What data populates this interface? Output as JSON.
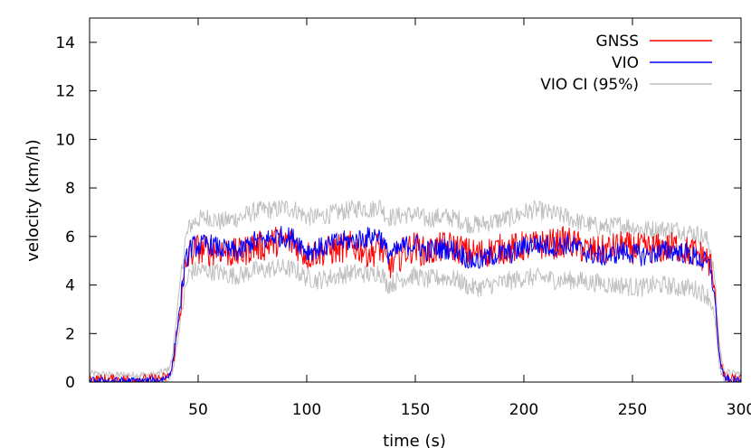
{
  "chart_data": {
    "type": "line",
    "title": "",
    "xlabel": "time (s)",
    "ylabel": "velocity (km/h)",
    "xlim": [
      0,
      300
    ],
    "ylim": [
      0,
      15
    ],
    "x_ticks": [
      50,
      100,
      150,
      200,
      250,
      300
    ],
    "y_ticks": [
      0,
      2,
      4,
      6,
      8,
      10,
      12,
      14
    ],
    "grid": false,
    "legend_position": "top-right",
    "series": [
      {
        "name": "GNSS",
        "color": "#ff0000",
        "x": [
          0,
          10,
          20,
          30,
          36,
          38,
          40,
          42,
          44,
          46,
          48,
          50,
          55,
          60,
          65,
          70,
          75,
          80,
          85,
          90,
          95,
          100,
          105,
          110,
          115,
          120,
          125,
          130,
          133,
          135,
          137,
          140,
          145,
          150,
          155,
          160,
          165,
          170,
          175,
          180,
          185,
          190,
          195,
          200,
          205,
          210,
          215,
          220,
          225,
          230,
          235,
          240,
          245,
          250,
          255,
          260,
          265,
          270,
          275,
          280,
          284,
          286,
          288,
          290,
          292,
          295,
          300
        ],
        "y": [
          0.1,
          0.1,
          0.1,
          0.1,
          0.2,
          0.5,
          1.8,
          3.2,
          4.6,
          5.3,
          5.4,
          5.5,
          5.4,
          5.5,
          5.3,
          5.3,
          5.6,
          5.6,
          5.8,
          5.8,
          5.7,
          5.2,
          5.4,
          5.4,
          5.5,
          5.6,
          5.5,
          5.3,
          5.6,
          5.4,
          4.8,
          4.9,
          5.4,
          5.6,
          5.3,
          5.5,
          5.6,
          5.5,
          5.3,
          5.3,
          5.4,
          5.5,
          5.5,
          5.6,
          5.6,
          5.7,
          5.7,
          5.8,
          5.6,
          5.4,
          5.4,
          5.5,
          5.6,
          5.5,
          5.5,
          5.5,
          5.5,
          5.6,
          5.4,
          5.3,
          5.1,
          4.8,
          3.6,
          1.2,
          0.2,
          0.1,
          0.1
        ]
      },
      {
        "name": "VIO",
        "color": "#0000ff",
        "x": [
          0,
          10,
          20,
          30,
          36,
          38,
          40,
          42,
          44,
          46,
          48,
          50,
          55,
          60,
          65,
          70,
          75,
          80,
          85,
          90,
          95,
          100,
          105,
          110,
          115,
          120,
          125,
          130,
          133,
          135,
          137,
          140,
          145,
          150,
          155,
          160,
          165,
          170,
          175,
          180,
          185,
          190,
          195,
          200,
          205,
          210,
          215,
          220,
          225,
          230,
          235,
          240,
          245,
          250,
          255,
          260,
          265,
          270,
          275,
          280,
          284,
          286,
          288,
          290,
          292,
          295,
          300
        ],
        "y": [
          0.05,
          0.05,
          0.05,
          0.05,
          0.2,
          0.6,
          2.0,
          3.4,
          4.8,
          5.5,
          5.6,
          5.6,
          5.7,
          5.5,
          5.4,
          5.4,
          5.8,
          5.8,
          6.0,
          6.0,
          5.9,
          5.4,
          5.5,
          5.6,
          5.8,
          5.8,
          5.9,
          6.0,
          6.1,
          5.8,
          5.3,
          5.3,
          5.6,
          5.7,
          5.4,
          5.5,
          5.5,
          5.4,
          5.0,
          5.0,
          5.2,
          5.3,
          5.3,
          5.6,
          5.7,
          5.6,
          5.6,
          5.7,
          5.5,
          5.3,
          5.2,
          5.2,
          5.4,
          5.3,
          5.2,
          5.3,
          5.4,
          5.4,
          5.3,
          5.1,
          4.9,
          4.7,
          3.4,
          1.0,
          0.2,
          0.05,
          0.05
        ]
      },
      {
        "name": "VIO CI (95%)",
        "color": "#c0c0c0",
        "x": [
          0,
          10,
          20,
          30,
          36,
          38,
          40,
          42,
          44,
          46,
          48,
          50,
          55,
          60,
          65,
          70,
          75,
          80,
          85,
          90,
          95,
          100,
          105,
          110,
          115,
          120,
          125,
          130,
          133,
          135,
          137,
          140,
          145,
          150,
          155,
          160,
          165,
          170,
          175,
          180,
          185,
          190,
          195,
          200,
          205,
          210,
          215,
          220,
          225,
          230,
          235,
          240,
          245,
          250,
          255,
          260,
          265,
          270,
          275,
          280,
          284,
          286,
          288,
          290,
          292,
          295,
          300
        ],
        "upper": [
          0.35,
          0.3,
          0.3,
          0.3,
          0.5,
          0.9,
          2.7,
          4.3,
          5.8,
          6.4,
          6.6,
          6.7,
          6.8,
          6.6,
          6.7,
          6.8,
          7.0,
          7.1,
          7.1,
          7.2,
          7.1,
          6.8,
          6.8,
          6.9,
          7.0,
          7.1,
          7.2,
          7.1,
          7.3,
          7.1,
          6.8,
          6.8,
          6.9,
          6.9,
          6.7,
          6.8,
          6.8,
          6.7,
          6.5,
          6.5,
          6.6,
          6.7,
          6.8,
          7.0,
          7.1,
          7.0,
          6.9,
          6.8,
          6.6,
          6.5,
          6.4,
          6.4,
          6.5,
          6.4,
          6.3,
          6.3,
          6.3,
          6.3,
          6.2,
          6.1,
          5.9,
          5.5,
          4.2,
          1.6,
          0.5,
          0.35,
          0.35
        ],
        "lower": [
          0.0,
          0.0,
          0.0,
          0.0,
          0.0,
          0.3,
          1.4,
          2.6,
          3.8,
          4.5,
          4.6,
          4.6,
          4.6,
          4.5,
          4.4,
          4.4,
          4.6,
          4.6,
          4.7,
          4.7,
          4.6,
          4.3,
          4.2,
          4.3,
          4.4,
          4.5,
          4.5,
          4.4,
          4.6,
          4.4,
          4.0,
          4.1,
          4.3,
          4.4,
          4.2,
          4.3,
          4.3,
          4.2,
          3.9,
          3.9,
          4.0,
          4.1,
          4.2,
          4.3,
          4.3,
          4.3,
          4.2,
          4.2,
          4.2,
          4.1,
          4.1,
          4.0,
          4.0,
          3.9,
          3.9,
          4.0,
          4.0,
          3.9,
          3.9,
          3.8,
          3.6,
          3.4,
          2.5,
          0.6,
          0.0,
          0.0,
          0.0
        ]
      }
    ]
  }
}
